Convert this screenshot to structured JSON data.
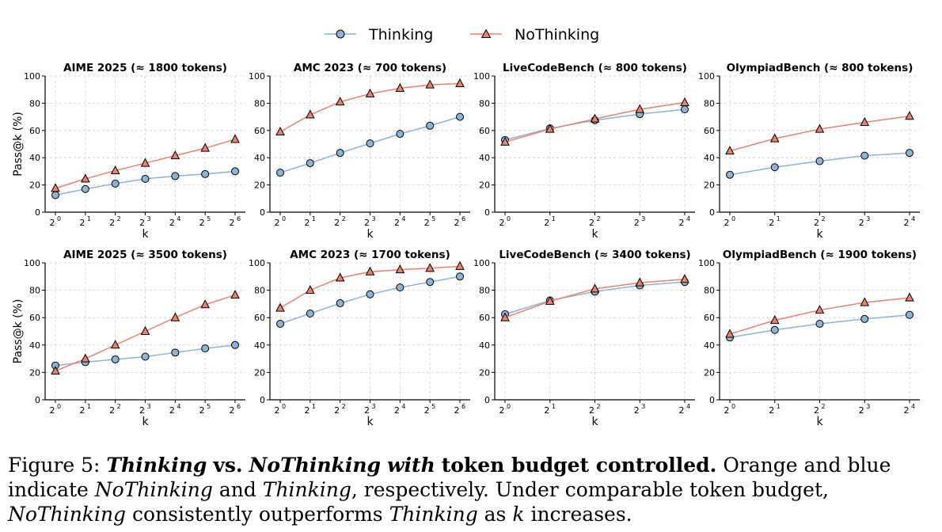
{
  "colors": {
    "thinking_fill": "#8fb3d2",
    "thinking_line": "#8fb3d2",
    "nothinking_fill": "#e8836f",
    "nothinking_line": "#e8836f",
    "marker_edge": "#000000",
    "grid": "#cccccc"
  },
  "legend": {
    "thinking": "Thinking",
    "nothinking": "NoThinking",
    "placement": "top-center"
  },
  "chart_data": [
    {
      "type": "line",
      "title": "AIME 2025 (≈ 1800 tokens)",
      "xlabel": "k",
      "ylabel": "Pass@k (%)",
      "x_exponents": [
        0,
        1,
        2,
        3,
        4,
        5,
        6
      ],
      "ylim": [
        0,
        100
      ],
      "yticks": [
        0,
        20,
        40,
        60,
        80,
        100
      ],
      "grid": true,
      "series": [
        {
          "name": "Thinking",
          "values": [
            12.5,
            17,
            21,
            24.5,
            26.5,
            28,
            30
          ]
        },
        {
          "name": "NoThinking",
          "values": [
            17.5,
            24.5,
            30.5,
            36,
            41.5,
            47,
            53.5
          ]
        }
      ]
    },
    {
      "type": "line",
      "title": "AMC 2023 (≈ 700 tokens)",
      "xlabel": "k",
      "ylabel": "",
      "x_exponents": [
        0,
        1,
        2,
        3,
        4,
        5,
        6
      ],
      "ylim": [
        0,
        100
      ],
      "yticks": [
        0,
        20,
        40,
        60,
        80,
        100
      ],
      "grid": true,
      "series": [
        {
          "name": "Thinking",
          "values": [
            29,
            36,
            43.5,
            50.5,
            57.5,
            63.5,
            70
          ]
        },
        {
          "name": "NoThinking",
          "values": [
            59,
            71.5,
            81,
            87,
            91,
            93.5,
            94.5
          ]
        }
      ]
    },
    {
      "type": "line",
      "title": "LiveCodeBench (≈ 800 tokens)",
      "xlabel": "k",
      "ylabel": "",
      "x_exponents": [
        0,
        1,
        2,
        3,
        4
      ],
      "ylim": [
        0,
        100
      ],
      "yticks": [
        0,
        20,
        40,
        60,
        80,
        100
      ],
      "grid": true,
      "series": [
        {
          "name": "Thinking",
          "values": [
            53,
            61.5,
            67.5,
            72,
            75.5
          ]
        },
        {
          "name": "NoThinking",
          "values": [
            51.5,
            61,
            68.5,
            75.5,
            80.5
          ]
        }
      ]
    },
    {
      "type": "line",
      "title": "OlympiadBench (≈ 800 tokens)",
      "xlabel": "k",
      "ylabel": "",
      "x_exponents": [
        0,
        1,
        2,
        3,
        4
      ],
      "ylim": [
        0,
        100
      ],
      "yticks": [
        0,
        20,
        40,
        60,
        80,
        100
      ],
      "grid": true,
      "series": [
        {
          "name": "Thinking",
          "values": [
            27.5,
            33,
            37.5,
            41.5,
            43.5
          ]
        },
        {
          "name": "NoThinking",
          "values": [
            45,
            54,
            61,
            66,
            70.5
          ]
        }
      ]
    },
    {
      "type": "line",
      "title": "AIME 2025 (≈ 3500 tokens)",
      "xlabel": "k",
      "ylabel": "Pass@k (%)",
      "x_exponents": [
        0,
        1,
        2,
        3,
        4,
        5,
        6
      ],
      "ylim": [
        0,
        100
      ],
      "yticks": [
        0,
        20,
        40,
        60,
        80,
        100
      ],
      "grid": true,
      "series": [
        {
          "name": "Thinking",
          "values": [
            25,
            27.5,
            29.5,
            31.5,
            34.5,
            37.5,
            40
          ]
        },
        {
          "name": "NoThinking",
          "values": [
            21,
            30,
            40,
            50,
            60,
            69.5,
            76.5
          ]
        }
      ]
    },
    {
      "type": "line",
      "title": "AMC 2023 (≈ 1700 tokens)",
      "xlabel": "k",
      "ylabel": "",
      "x_exponents": [
        0,
        1,
        2,
        3,
        4,
        5,
        6
      ],
      "ylim": [
        0,
        100
      ],
      "yticks": [
        0,
        20,
        40,
        60,
        80,
        100
      ],
      "grid": true,
      "series": [
        {
          "name": "Thinking",
          "values": [
            55.5,
            63,
            70.5,
            77,
            82,
            86,
            90
          ]
        },
        {
          "name": "NoThinking",
          "values": [
            67,
            80,
            89,
            93.5,
            95,
            96,
            97.5
          ]
        }
      ]
    },
    {
      "type": "line",
      "title": "LiveCodeBench (≈ 3400 tokens)",
      "xlabel": "k",
      "ylabel": "",
      "x_exponents": [
        0,
        1,
        2,
        3,
        4
      ],
      "ylim": [
        0,
        100
      ],
      "yticks": [
        0,
        20,
        40,
        60,
        80,
        100
      ],
      "grid": true,
      "series": [
        {
          "name": "Thinking",
          "values": [
            62.5,
            72.5,
            79,
            83.5,
            86
          ]
        },
        {
          "name": "NoThinking",
          "values": [
            60,
            72,
            81,
            85.5,
            88
          ]
        }
      ]
    },
    {
      "type": "line",
      "title": "OlympiadBench (≈ 1900 tokens)",
      "xlabel": "k",
      "ylabel": "",
      "x_exponents": [
        0,
        1,
        2,
        3,
        4
      ],
      "ylim": [
        0,
        100
      ],
      "yticks": [
        0,
        20,
        40,
        60,
        80,
        100
      ],
      "grid": true,
      "series": [
        {
          "name": "Thinking",
          "values": [
            45.5,
            51,
            55.5,
            59,
            62
          ]
        },
        {
          "name": "NoThinking",
          "values": [
            48,
            58,
            65.5,
            71,
            74.5
          ]
        }
      ]
    }
  ],
  "caption": {
    "label": "Figure 5:",
    "part1": "Thinking",
    "part2": "vs.",
    "part3": "NoThinking",
    "part4": "with",
    "part5": "token budget controlled.",
    "part6": "Orange and blue indicate",
    "part7": "NoThinking",
    "part8": "and",
    "part9": "Thinking",
    "part10": ", respectively. Under comparable token budget,",
    "part11": "NoThinking",
    "part12": "consistently outperforms",
    "part13": "Thinking",
    "part14": "as",
    "part15": "k",
    "part16": "increases."
  }
}
